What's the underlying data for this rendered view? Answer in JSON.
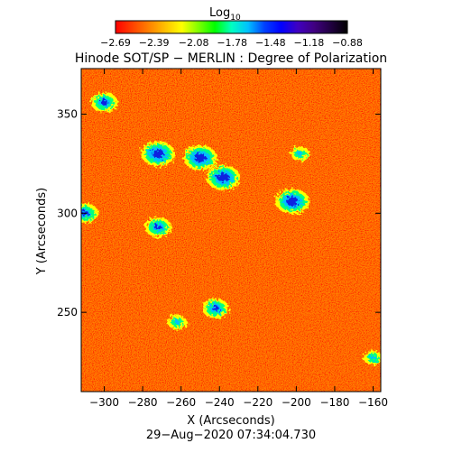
{
  "colorbar": {
    "label": "Log",
    "label_subscript": "10",
    "tick_labels": [
      "−2.69",
      "−2.39",
      "−2.08",
      "−1.78",
      "−1.48",
      "−1.18",
      "−0.88"
    ],
    "tick_values": [
      -2.69,
      -2.39,
      -2.08,
      -1.78,
      -1.48,
      -1.18,
      -0.88
    ],
    "range": [
      -2.69,
      -0.88
    ],
    "colormap": [
      "#ff0000",
      "#ff4000",
      "#ff8000",
      "#ffc000",
      "#ffff00",
      "#80ff00",
      "#00ff00",
      "#00ffc0",
      "#00c0ff",
      "#0040ff",
      "#0000ff",
      "#4000c0",
      "#400080",
      "#200040",
      "#000000"
    ]
  },
  "title": "Hinode SOT/SP − MERLIN : Degree of Polarization",
  "xaxis": {
    "label": "X (Arcseconds)",
    "range": [
      -312,
      -156
    ],
    "ticks": [
      -300,
      -280,
      -260,
      -240,
      -220,
      -200,
      -180,
      -160
    ],
    "tick_labels": [
      "−300",
      "−280",
      "−260",
      "−240",
      "−220",
      "−200",
      "−180",
      "−160"
    ]
  },
  "yaxis": {
    "label": "Y (Arcseconds)",
    "range": [
      210,
      373
    ],
    "ticks": [
      250,
      300,
      350
    ],
    "tick_labels": [
      "250",
      "300",
      "350"
    ]
  },
  "timestamp": "29−Aug−2020 07:34:04.730",
  "image": {
    "background_color": "#ff2a00",
    "features": [
      {
        "x": -272,
        "y": 330,
        "level": "high"
      },
      {
        "x": -250,
        "y": 328,
        "level": "high"
      },
      {
        "x": -238,
        "y": 318,
        "level": "high"
      },
      {
        "x": -202,
        "y": 306,
        "level": "high"
      },
      {
        "x": -300,
        "y": 356,
        "level": "medium"
      },
      {
        "x": -310,
        "y": 300,
        "level": "medium"
      },
      {
        "x": -272,
        "y": 293,
        "level": "medium"
      },
      {
        "x": -242,
        "y": 252,
        "level": "medium"
      },
      {
        "x": -262,
        "y": 245,
        "level": "low"
      },
      {
        "x": -198,
        "y": 330,
        "level": "low"
      },
      {
        "x": -160,
        "y": 227,
        "level": "low"
      }
    ]
  }
}
